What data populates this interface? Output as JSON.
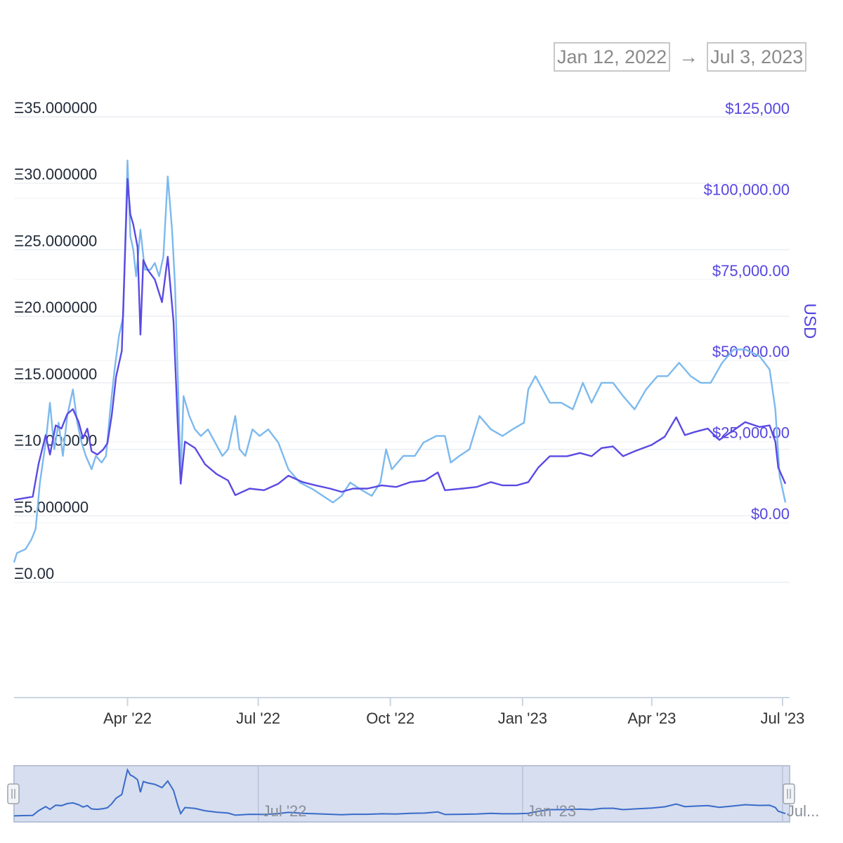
{
  "range_selector": {
    "from": "Jan 12, 2022",
    "arrow": "→",
    "to": "Jul 3, 2023"
  },
  "colors": {
    "eth_series": "#7cb9ee",
    "usd_series": "#5a4ae3",
    "right_axis": "#5546e0",
    "navigator_fill": "#d6deef",
    "navigator_line": "#3a6bc9"
  },
  "chart_data": {
    "type": "line",
    "x_range": [
      "2022-01-12",
      "2023-07-03"
    ],
    "x_ticks": [
      "Apr '22",
      "Jul '22",
      "Oct '22",
      "Jan '23",
      "Apr '23",
      "Jul '23"
    ],
    "y_left": {
      "ticks": [
        "Ξ0.00",
        "Ξ5.000000",
        "Ξ10.000000",
        "Ξ15.000000",
        "Ξ20.000000",
        "Ξ25.000000",
        "Ξ30.000000",
        "Ξ35.000000"
      ],
      "range": [
        0,
        35
      ]
    },
    "y_right": {
      "label": "USD",
      "ticks": [
        "$0.00",
        "$25,000.00",
        "$50,000.00",
        "$75,000.00",
        "$100,000.00",
        "$125,000"
      ],
      "range": [
        0,
        125000
      ]
    },
    "series": [
      {
        "axis": "left",
        "color": "#7cb9ee",
        "points": [
          [
            "2022-01-12",
            1.5
          ],
          [
            "2022-01-14",
            2.2
          ],
          [
            "2022-01-20",
            2.5
          ],
          [
            "2022-01-24",
            3.2
          ],
          [
            "2022-01-27",
            4.0
          ],
          [
            "2022-01-30",
            7.5
          ],
          [
            "2022-02-03",
            10.5
          ],
          [
            "2022-02-06",
            13.5
          ],
          [
            "2022-02-09",
            10.0
          ],
          [
            "2022-02-12",
            12.0
          ],
          [
            "2022-02-15",
            9.5
          ],
          [
            "2022-02-18",
            12.5
          ],
          [
            "2022-02-22",
            14.5
          ],
          [
            "2022-02-25",
            12.0
          ],
          [
            "2022-02-28",
            10.5
          ],
          [
            "2022-03-03",
            9.5
          ],
          [
            "2022-03-07",
            8.5
          ],
          [
            "2022-03-10",
            9.5
          ],
          [
            "2022-03-14",
            9.0
          ],
          [
            "2022-03-17",
            9.5
          ],
          [
            "2022-03-20",
            13.0
          ],
          [
            "2022-03-23",
            16.0
          ],
          [
            "2022-03-26",
            18.5
          ],
          [
            "2022-03-29",
            20.0
          ],
          [
            "2022-04-01",
            31.7
          ],
          [
            "2022-04-03",
            26.0
          ],
          [
            "2022-04-05",
            25.0
          ],
          [
            "2022-04-07",
            23.0
          ],
          [
            "2022-04-10",
            26.5
          ],
          [
            "2022-04-13",
            23.5
          ],
          [
            "2022-04-17",
            23.5
          ],
          [
            "2022-04-20",
            24.0
          ],
          [
            "2022-04-23",
            23.0
          ],
          [
            "2022-04-26",
            24.5
          ],
          [
            "2022-04-29",
            30.5
          ],
          [
            "2022-05-02",
            26.5
          ],
          [
            "2022-05-04",
            22.5
          ],
          [
            "2022-05-06",
            15.5
          ],
          [
            "2022-05-08",
            8.0
          ],
          [
            "2022-05-10",
            14.0
          ],
          [
            "2022-05-14",
            12.5
          ],
          [
            "2022-05-18",
            11.5
          ],
          [
            "2022-05-22",
            11.0
          ],
          [
            "2022-05-27",
            11.5
          ],
          [
            "2022-06-01",
            10.5
          ],
          [
            "2022-06-06",
            9.5
          ],
          [
            "2022-06-10",
            10.0
          ],
          [
            "2022-06-15",
            12.5
          ],
          [
            "2022-06-18",
            10.0
          ],
          [
            "2022-06-22",
            9.5
          ],
          [
            "2022-06-27",
            11.5
          ],
          [
            "2022-07-02",
            11.0
          ],
          [
            "2022-07-08",
            11.5
          ],
          [
            "2022-07-15",
            10.5
          ],
          [
            "2022-07-22",
            8.5
          ],
          [
            "2022-07-30",
            7.5
          ],
          [
            "2022-08-08",
            7.0
          ],
          [
            "2022-08-15",
            6.5
          ],
          [
            "2022-08-22",
            6.0
          ],
          [
            "2022-08-28",
            6.5
          ],
          [
            "2022-09-03",
            7.5
          ],
          [
            "2022-09-10",
            7.0
          ],
          [
            "2022-09-18",
            6.5
          ],
          [
            "2022-09-24",
            7.5
          ],
          [
            "2022-09-28",
            10.0
          ],
          [
            "2022-10-02",
            8.5
          ],
          [
            "2022-10-10",
            9.5
          ],
          [
            "2022-10-18",
            9.5
          ],
          [
            "2022-10-24",
            10.5
          ],
          [
            "2022-11-02",
            11.0
          ],
          [
            "2022-11-08",
            11.0
          ],
          [
            "2022-11-12",
            9.0
          ],
          [
            "2022-11-18",
            9.5
          ],
          [
            "2022-11-25",
            10.0
          ],
          [
            "2022-12-02",
            12.5
          ],
          [
            "2022-12-10",
            11.5
          ],
          [
            "2022-12-18",
            11.0
          ],
          [
            "2022-12-25",
            11.5
          ],
          [
            "2023-01-02",
            12.0
          ],
          [
            "2023-01-05",
            14.5
          ],
          [
            "2023-01-10",
            15.5
          ],
          [
            "2023-01-15",
            14.5
          ],
          [
            "2023-01-20",
            13.5
          ],
          [
            "2023-01-28",
            13.5
          ],
          [
            "2023-02-05",
            13.0
          ],
          [
            "2023-02-12",
            15.0
          ],
          [
            "2023-02-18",
            13.5
          ],
          [
            "2023-02-25",
            15.0
          ],
          [
            "2023-03-05",
            15.0
          ],
          [
            "2023-03-12",
            14.0
          ],
          [
            "2023-03-20",
            13.0
          ],
          [
            "2023-03-28",
            14.5
          ],
          [
            "2023-04-05",
            15.5
          ],
          [
            "2023-04-12",
            15.5
          ],
          [
            "2023-04-20",
            16.5
          ],
          [
            "2023-04-28",
            15.5
          ],
          [
            "2023-05-05",
            15.0
          ],
          [
            "2023-05-12",
            15.0
          ],
          [
            "2023-05-20",
            16.5
          ],
          [
            "2023-05-28",
            17.5
          ],
          [
            "2023-06-05",
            17.5
          ],
          [
            "2023-06-15",
            17.0
          ],
          [
            "2023-06-22",
            16.0
          ],
          [
            "2023-06-26",
            13.0
          ],
          [
            "2023-06-29",
            8.0
          ],
          [
            "2023-07-03",
            6.0
          ]
        ]
      },
      {
        "axis": "right",
        "color": "#5a4ae3",
        "points": [
          [
            "2022-01-12",
            7000
          ],
          [
            "2022-01-18",
            7500
          ],
          [
            "2022-01-25",
            8000
          ],
          [
            "2022-01-29",
            18000
          ],
          [
            "2022-02-03",
            27000
          ],
          [
            "2022-02-06",
            21000
          ],
          [
            "2022-02-10",
            30000
          ],
          [
            "2022-02-14",
            29000
          ],
          [
            "2022-02-18",
            33500
          ],
          [
            "2022-02-22",
            35000
          ],
          [
            "2022-02-26",
            31000
          ],
          [
            "2022-03-01",
            26000
          ],
          [
            "2022-03-04",
            29000
          ],
          [
            "2022-03-07",
            22000
          ],
          [
            "2022-03-11",
            21000
          ],
          [
            "2022-03-15",
            22500
          ],
          [
            "2022-03-18",
            24500
          ],
          [
            "2022-03-21",
            33000
          ],
          [
            "2022-03-24",
            45000
          ],
          [
            "2022-03-28",
            53000
          ],
          [
            "2022-04-01",
            106000
          ],
          [
            "2022-04-03",
            95000
          ],
          [
            "2022-04-05",
            92000
          ],
          [
            "2022-04-08",
            85000
          ],
          [
            "2022-04-10",
            58000
          ],
          [
            "2022-04-12",
            81000
          ],
          [
            "2022-04-15",
            78000
          ],
          [
            "2022-04-20",
            75000
          ],
          [
            "2022-04-25",
            68000
          ],
          [
            "2022-04-29",
            82000
          ],
          [
            "2022-05-03",
            62000
          ],
          [
            "2022-05-06",
            30000
          ],
          [
            "2022-05-08",
            12000
          ],
          [
            "2022-05-11",
            25000
          ],
          [
            "2022-05-18",
            23000
          ],
          [
            "2022-05-25",
            18000
          ],
          [
            "2022-06-02",
            15000
          ],
          [
            "2022-06-10",
            13000
          ],
          [
            "2022-06-15",
            8500
          ],
          [
            "2022-06-25",
            10500
          ],
          [
            "2022-07-05",
            10000
          ],
          [
            "2022-07-15",
            12000
          ],
          [
            "2022-07-22",
            14500
          ],
          [
            "2022-08-01",
            12500
          ],
          [
            "2022-08-10",
            11500
          ],
          [
            "2022-08-20",
            10500
          ],
          [
            "2022-08-28",
            9500
          ],
          [
            "2022-09-05",
            10500
          ],
          [
            "2022-09-15",
            10500
          ],
          [
            "2022-09-25",
            11500
          ],
          [
            "2022-10-05",
            11000
          ],
          [
            "2022-10-15",
            12500
          ],
          [
            "2022-10-25",
            13000
          ],
          [
            "2022-11-03",
            15500
          ],
          [
            "2022-11-08",
            10000
          ],
          [
            "2022-11-20",
            10500
          ],
          [
            "2022-11-30",
            11000
          ],
          [
            "2022-12-10",
            12500
          ],
          [
            "2022-12-18",
            11500
          ],
          [
            "2022-12-28",
            11500
          ],
          [
            "2023-01-05",
            12500
          ],
          [
            "2023-01-12",
            17000
          ],
          [
            "2023-01-20",
            20500
          ],
          [
            "2023-02-01",
            20500
          ],
          [
            "2023-02-10",
            21500
          ],
          [
            "2023-02-18",
            20500
          ],
          [
            "2023-02-25",
            23000
          ],
          [
            "2023-03-05",
            23500
          ],
          [
            "2023-03-12",
            20500
          ],
          [
            "2023-03-20",
            22000
          ],
          [
            "2023-04-01",
            24000
          ],
          [
            "2023-04-10",
            26500
          ],
          [
            "2023-04-18",
            32500
          ],
          [
            "2023-04-24",
            27000
          ],
          [
            "2023-05-01",
            28000
          ],
          [
            "2023-05-10",
            29000
          ],
          [
            "2023-05-18",
            25500
          ],
          [
            "2023-05-28",
            28500
          ],
          [
            "2023-06-05",
            31000
          ],
          [
            "2023-06-15",
            29500
          ],
          [
            "2023-06-22",
            30000
          ],
          [
            "2023-06-26",
            25000
          ],
          [
            "2023-06-28",
            17000
          ],
          [
            "2023-07-03",
            12000
          ]
        ]
      }
    ],
    "navigator": {
      "labels": [
        "Jul '22",
        "Jan '23",
        "Jul..."
      ]
    }
  }
}
